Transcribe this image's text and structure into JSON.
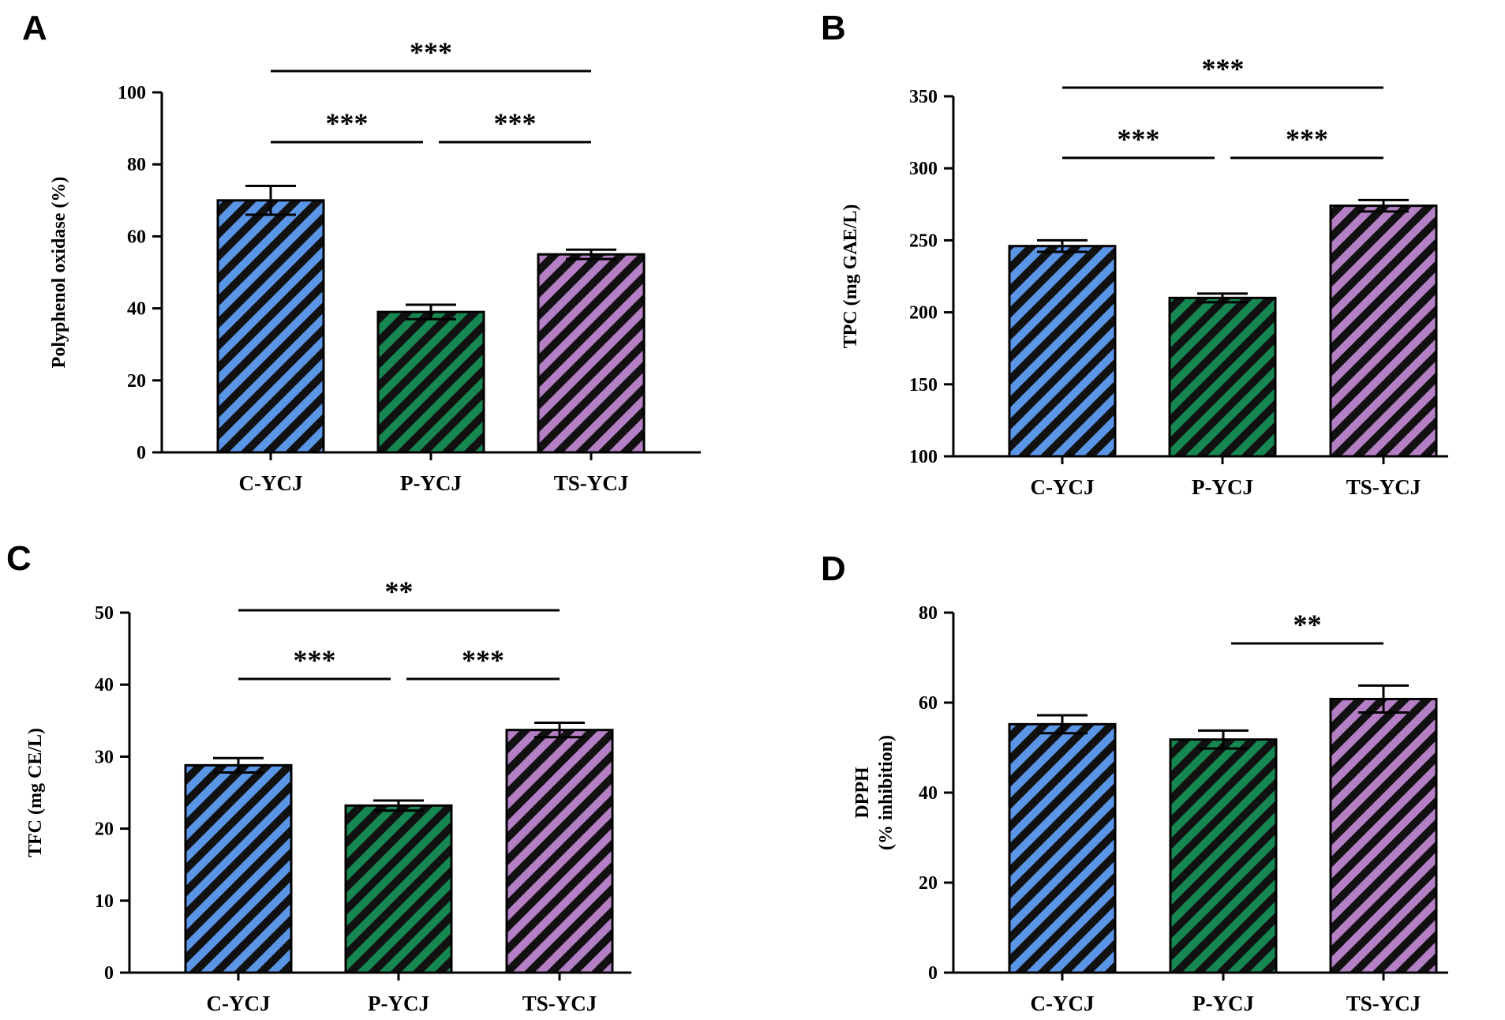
{
  "colors": {
    "C-YCJ": "#5b95e6",
    "P-YCJ": "#168750",
    "TS-YCJ": "#b47fc4",
    "axis": "#000000"
  },
  "chart_data": [
    {
      "panel": "A",
      "type": "bar",
      "categories": [
        "C-YCJ",
        "P-YCJ",
        "TS-YCJ"
      ],
      "values": [
        70,
        39,
        55
      ],
      "errors": [
        4,
        2,
        1.3
      ],
      "ylabel": "Polyphenol oxidase (%)",
      "ylim": [
        0,
        100
      ],
      "yticks": [
        0,
        20,
        40,
        60,
        80,
        100
      ],
      "significance": [
        {
          "from": 0,
          "to": 2,
          "label": "***",
          "level": 2
        },
        {
          "from": 0,
          "to": 1,
          "label": "***",
          "level": 1
        },
        {
          "from": 1,
          "to": 2,
          "label": "***",
          "level": 1
        }
      ]
    },
    {
      "panel": "B",
      "type": "bar",
      "categories": [
        "C-YCJ",
        "P-YCJ",
        "TS-YCJ"
      ],
      "values": [
        246,
        210,
        274
      ],
      "errors": [
        4,
        3,
        4
      ],
      "ylabel": "TPC (mg GAE/L)",
      "ylim": [
        100,
        350
      ],
      "yticks": [
        100,
        150,
        200,
        250,
        300,
        350
      ],
      "significance": [
        {
          "from": 0,
          "to": 2,
          "label": "***",
          "level": 2
        },
        {
          "from": 0,
          "to": 1,
          "label": "***",
          "level": 1
        },
        {
          "from": 1,
          "to": 2,
          "label": "***",
          "level": 1
        }
      ]
    },
    {
      "panel": "C",
      "type": "bar",
      "categories": [
        "C-YCJ",
        "P-YCJ",
        "TS-YCJ"
      ],
      "values": [
        28.8,
        23.2,
        33.7
      ],
      "errors": [
        1,
        0.7,
        1
      ],
      "ylabel": "TFC (mg CE/L)",
      "ylim": [
        0,
        50
      ],
      "yticks": [
        0,
        10,
        20,
        30,
        40,
        50
      ],
      "significance": [
        {
          "from": 0,
          "to": 2,
          "label": "**",
          "level": 2
        },
        {
          "from": 0,
          "to": 1,
          "label": "***",
          "level": 1
        },
        {
          "from": 1,
          "to": 2,
          "label": "***",
          "level": 1
        }
      ]
    },
    {
      "panel": "D",
      "type": "bar",
      "categories": [
        "C-YCJ",
        "P-YCJ",
        "TS-YCJ"
      ],
      "values": [
        55.2,
        51.8,
        60.8
      ],
      "errors": [
        2,
        2,
        3
      ],
      "ylabel": "DPPH (% inhibition)",
      "ylabel_lines": [
        "DPPH",
        "(% inhibition)"
      ],
      "ylim": [
        0,
        80
      ],
      "yticks": [
        0,
        20,
        40,
        60,
        80
      ],
      "significance": [
        {
          "from": 1,
          "to": 2,
          "label": "**",
          "level": 1
        }
      ]
    }
  ]
}
